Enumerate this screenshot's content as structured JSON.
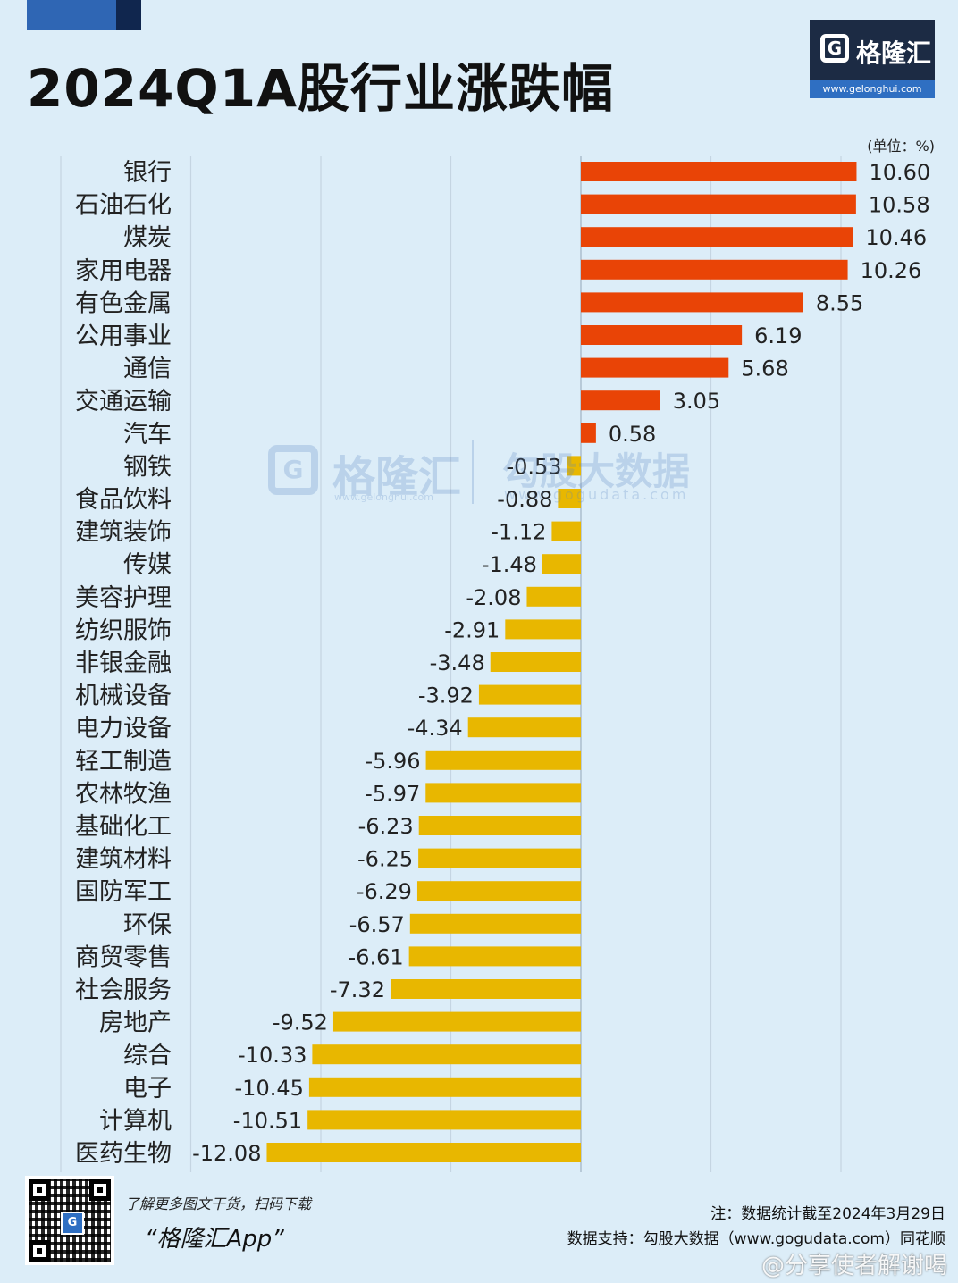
{
  "title": "2024Q1A股行业涨跌幅",
  "logo": {
    "icon": "G",
    "name": "格隆汇",
    "url": "www.gelonghui.com"
  },
  "unit": "(单位：%)",
  "watermark": {
    "icon": "G",
    "name": "格隆汇",
    "url": "www.gelonghui.com",
    "brand2": "勾股大数据",
    "url2": "www.gogudata.com"
  },
  "chart_data": {
    "type": "bar",
    "orientation": "horizontal",
    "title": "2024Q1A股行业涨跌幅",
    "unit": "%",
    "xlim": [
      -20,
      10
    ],
    "gridlines": [
      -20,
      -15,
      -10,
      -5,
      5,
      10
    ],
    "colors": {
      "positive": "#e94406",
      "negative": "#e8b700"
    },
    "categories": [
      "银行",
      "石油石化",
      "煤炭",
      "家用电器",
      "有色金属",
      "公用事业",
      "通信",
      "交通运输",
      "汽车",
      "钢铁",
      "食品饮料",
      "建筑装饰",
      "传媒",
      "美容护理",
      "纺织服饰",
      "非银金融",
      "机械设备",
      "电力设备",
      "轻工制造",
      "农林牧渔",
      "基础化工",
      "建筑材料",
      "国防军工",
      "环保",
      "商贸零售",
      "社会服务",
      "房地产",
      "综合",
      "电子",
      "计算机",
      "医药生物"
    ],
    "values": [
      10.6,
      10.58,
      10.46,
      10.26,
      8.55,
      6.19,
      5.68,
      3.05,
      0.58,
      -0.53,
      -0.88,
      -1.12,
      -1.48,
      -2.08,
      -2.91,
      -3.48,
      -3.92,
      -4.34,
      -5.96,
      -5.97,
      -6.23,
      -6.25,
      -6.29,
      -6.57,
      -6.61,
      -7.32,
      -9.52,
      -10.33,
      -10.45,
      -10.51,
      -12.08
    ],
    "labels": [
      "10.60",
      "10.58",
      "10.46",
      "10.26",
      "8.55",
      "6.19",
      "5.68",
      "3.05",
      "0.58",
      "-0.53",
      "-0.88",
      "-1.12",
      "-1.48",
      "-2.08",
      "-2.91",
      "-3.48",
      "-3.92",
      "-4.34",
      "-5.96",
      "-5.97",
      "-6.23",
      "-6.25",
      "-6.29",
      "-6.57",
      "-6.61",
      "-7.32",
      "-9.52",
      "-10.33",
      "-10.45",
      "-10.51",
      "-12.08"
    ]
  },
  "footer": {
    "qr_center": "G",
    "qr_caption": "了解更多图文干货，扫码下载",
    "app_name": "“格隆汇App”",
    "note": "注：数据统计截至2024年3月29日",
    "source": "数据支持：勾股大数据（www.gogudata.com）同花顺",
    "weibo": "@分享使者解谢喝"
  }
}
